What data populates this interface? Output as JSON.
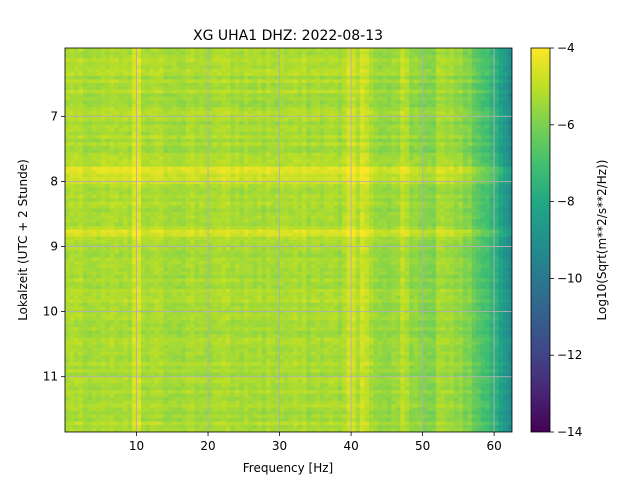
{
  "chart_data": {
    "type": "heatmap",
    "title": "XG UHA1  DHZ: 2022-08-13",
    "xlabel": "Frequency [Hz]",
    "ylabel": "Lokalzeit (UTC + 2 Stunde)",
    "xlim": [
      0,
      62.5
    ],
    "ylim": [
      5.95,
      11.85
    ],
    "y_inverted": true,
    "xticks": [
      10,
      20,
      30,
      40,
      50,
      60
    ],
    "yticks": [
      7,
      8,
      9,
      10,
      11
    ],
    "grid": true,
    "colormap": "viridis",
    "colorbar": {
      "label": "Log10(Sqrt(m**2/s**2/Hz))",
      "range": [
        -14,
        -4
      ],
      "ticks": [
        -4,
        -6,
        -8,
        -10,
        -12,
        -14
      ]
    },
    "value_model": {
      "baseline_low_freq": -5.3,
      "rolloff_start_hz": 52,
      "value_at_62_hz": -9.0,
      "bright_band_hours": [
        [
          7.75,
          8.05
        ],
        [
          8.75,
          8.85
        ]
      ],
      "line_features_hz": [
        10,
        40,
        42,
        47.5
      ]
    }
  }
}
